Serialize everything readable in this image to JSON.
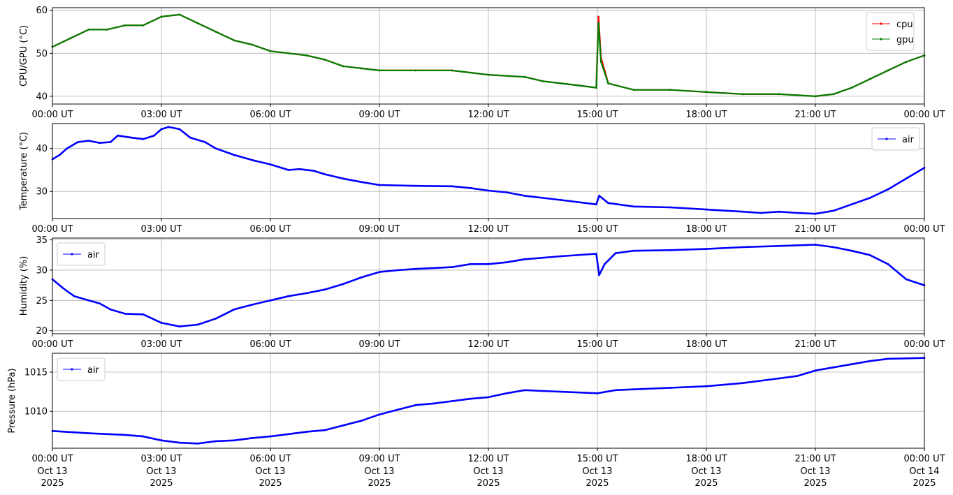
{
  "x_ticks": [
    "00:00 UT",
    "03:00 UT",
    "06:00 UT",
    "09:00 UT",
    "12:00 UT",
    "15:00 UT",
    "18:00 UT",
    "21:00 UT",
    "00:00 UT"
  ],
  "x_tick_dates": [
    [
      "Oct 13",
      "2025"
    ],
    [
      "Oct 13",
      "2025"
    ],
    [
      "Oct 13",
      "2025"
    ],
    [
      "Oct 13",
      "2025"
    ],
    [
      "Oct 13",
      "2025"
    ],
    [
      "Oct 13",
      "2025"
    ],
    [
      "Oct 13",
      "2025"
    ],
    [
      "Oct 13",
      "2025"
    ],
    [
      "Oct 14",
      "2025"
    ]
  ],
  "colors": {
    "cpu": "#ff0000",
    "gpu": "#008000",
    "air": "#0000ff",
    "grid": "#b0b0b0"
  },
  "chart_data": [
    {
      "type": "line",
      "ylabel": "CPU/GPU (°C)",
      "x_unit": "hours (UT)",
      "xlim": [
        0,
        24
      ],
      "ylim": [
        38.2,
        60.6
      ],
      "yticks": [
        40,
        50,
        60
      ],
      "grid": true,
      "legend": "top-right",
      "series": [
        {
          "name": "cpu",
          "color": "#ff0000",
          "points": [
            [
              0,
              51.5
            ],
            [
              0.5,
              53.5
            ],
            [
              1,
              55.5
            ],
            [
              1.5,
              55.5
            ],
            [
              2,
              56.5
            ],
            [
              2.5,
              56.5
            ],
            [
              3,
              58.5
            ],
            [
              3.5,
              59
            ],
            [
              4,
              57
            ],
            [
              4.5,
              55
            ],
            [
              5,
              53
            ],
            [
              5.5,
              52
            ],
            [
              6,
              50.5
            ],
            [
              6.5,
              50
            ],
            [
              7,
              49.5
            ],
            [
              7.5,
              48.5
            ],
            [
              8,
              47
            ],
            [
              8.5,
              46.5
            ],
            [
              9,
              46
            ],
            [
              10,
              46
            ],
            [
              11,
              46
            ],
            [
              12,
              45
            ],
            [
              13,
              44.5
            ],
            [
              13.5,
              43.5
            ],
            [
              14,
              43
            ],
            [
              14.5,
              42.5
            ],
            [
              14.97,
              42
            ],
            [
              15.03,
              58.5
            ],
            [
              15.1,
              49
            ],
            [
              15.3,
              43
            ],
            [
              16,
              41.5
            ],
            [
              17,
              41.5
            ],
            [
              18,
              41
            ],
            [
              19,
              40.5
            ],
            [
              20,
              40.5
            ],
            [
              21,
              40
            ],
            [
              21.5,
              40.5
            ],
            [
              22,
              42
            ],
            [
              22.5,
              44
            ],
            [
              23,
              46
            ],
            [
              23.5,
              48
            ],
            [
              24,
              49.5
            ]
          ]
        },
        {
          "name": "gpu",
          "color": "#008000",
          "points": [
            [
              0,
              51.5
            ],
            [
              0.5,
              53.5
            ],
            [
              1,
              55.5
            ],
            [
              1.5,
              55.5
            ],
            [
              2,
              56.5
            ],
            [
              2.5,
              56.5
            ],
            [
              3,
              58.5
            ],
            [
              3.5,
              59
            ],
            [
              4,
              57
            ],
            [
              4.5,
              55
            ],
            [
              5,
              53
            ],
            [
              5.5,
              52
            ],
            [
              6,
              50.5
            ],
            [
              6.5,
              50
            ],
            [
              7,
              49.5
            ],
            [
              7.5,
              48.5
            ],
            [
              8,
              47
            ],
            [
              8.5,
              46.5
            ],
            [
              9,
              46
            ],
            [
              10,
              46
            ],
            [
              11,
              46
            ],
            [
              12,
              45
            ],
            [
              13,
              44.5
            ],
            [
              13.5,
              43.5
            ],
            [
              14,
              43
            ],
            [
              14.5,
              42.5
            ],
            [
              14.97,
              42
            ],
            [
              15.03,
              57
            ],
            [
              15.1,
              48
            ],
            [
              15.3,
              43
            ],
            [
              16,
              41.5
            ],
            [
              17,
              41.5
            ],
            [
              18,
              41
            ],
            [
              19,
              40.5
            ],
            [
              20,
              40.5
            ],
            [
              21,
              40
            ],
            [
              21.5,
              40.5
            ],
            [
              22,
              42
            ],
            [
              22.5,
              44
            ],
            [
              23,
              46
            ],
            [
              23.5,
              48
            ],
            [
              24,
              49.5
            ]
          ]
        }
      ]
    },
    {
      "type": "line",
      "ylabel": "Temperature (°C)",
      "x_unit": "hours (UT)",
      "xlim": [
        0,
        24
      ],
      "ylim": [
        23.7,
        45.8
      ],
      "yticks": [
        30,
        40
      ],
      "grid": true,
      "legend": "top-right",
      "series": [
        {
          "name": "air",
          "color": "#0000ff",
          "points": [
            [
              0,
              37.5
            ],
            [
              0.2,
              38.5
            ],
            [
              0.4,
              40
            ],
            [
              0.7,
              41.5
            ],
            [
              1,
              41.8
            ],
            [
              1.3,
              41.3
            ],
            [
              1.6,
              41.5
            ],
            [
              1.8,
              43
            ],
            [
              2.2,
              42.5
            ],
            [
              2.5,
              42.2
            ],
            [
              2.8,
              43
            ],
            [
              3,
              44.5
            ],
            [
              3.2,
              45
            ],
            [
              3.5,
              44.5
            ],
            [
              3.8,
              42.5
            ],
            [
              4.2,
              41.5
            ],
            [
              4.5,
              40
            ],
            [
              5,
              38.5
            ],
            [
              5.5,
              37.3
            ],
            [
              6,
              36.3
            ],
            [
              6.5,
              35
            ],
            [
              6.8,
              35.2
            ],
            [
              7.2,
              34.8
            ],
            [
              7.5,
              34
            ],
            [
              8,
              33
            ],
            [
              8.5,
              32.2
            ],
            [
              9,
              31.5
            ],
            [
              10,
              31.3
            ],
            [
              11,
              31.2
            ],
            [
              11.5,
              30.8
            ],
            [
              12,
              30.2
            ],
            [
              12.5,
              29.8
            ],
            [
              13,
              29
            ],
            [
              14,
              28
            ],
            [
              14.97,
              27
            ],
            [
              15.05,
              29
            ],
            [
              15.3,
              27.3
            ],
            [
              16,
              26.5
            ],
            [
              17,
              26.3
            ],
            [
              18,
              25.8
            ],
            [
              19,
              25.3
            ],
            [
              19.5,
              25
            ],
            [
              20,
              25.3
            ],
            [
              20.5,
              25
            ],
            [
              21,
              24.8
            ],
            [
              21.5,
              25.5
            ],
            [
              22,
              27
            ],
            [
              22.5,
              28.5
            ],
            [
              23,
              30.5
            ],
            [
              23.5,
              33
            ],
            [
              24,
              35.5
            ]
          ]
        }
      ]
    },
    {
      "type": "line",
      "ylabel": "Humidity (%)",
      "x_unit": "hours (UT)",
      "xlim": [
        0,
        24
      ],
      "ylim": [
        19.5,
        35.3
      ],
      "yticks": [
        20,
        25,
        30,
        35
      ],
      "grid": true,
      "legend": "top-left",
      "series": [
        {
          "name": "air",
          "color": "#0000ff",
          "points": [
            [
              0,
              28.5
            ],
            [
              0.3,
              27
            ],
            [
              0.6,
              25.7
            ],
            [
              1,
              25
            ],
            [
              1.3,
              24.5
            ],
            [
              1.6,
              23.5
            ],
            [
              2,
              22.8
            ],
            [
              2.5,
              22.7
            ],
            [
              3,
              21.3
            ],
            [
              3.5,
              20.7
            ],
            [
              4,
              21
            ],
            [
              4.5,
              22
            ],
            [
              5,
              23.5
            ],
            [
              5.5,
              24.3
            ],
            [
              6,
              25
            ],
            [
              6.5,
              25.7
            ],
            [
              7,
              26.2
            ],
            [
              7.5,
              26.8
            ],
            [
              8,
              27.7
            ],
            [
              8.5,
              28.8
            ],
            [
              9,
              29.7
            ],
            [
              9.5,
              30
            ],
            [
              10,
              30.2
            ],
            [
              11,
              30.5
            ],
            [
              11.5,
              31
            ],
            [
              12,
              31
            ],
            [
              12.5,
              31.3
            ],
            [
              13,
              31.8
            ],
            [
              14,
              32.3
            ],
            [
              14.97,
              32.7
            ],
            [
              15.05,
              29.2
            ],
            [
              15.2,
              31
            ],
            [
              15.5,
              32.8
            ],
            [
              16,
              33.2
            ],
            [
              17,
              33.3
            ],
            [
              18,
              33.5
            ],
            [
              19,
              33.8
            ],
            [
              20,
              34
            ],
            [
              21,
              34.2
            ],
            [
              21.5,
              33.8
            ],
            [
              22,
              33.2
            ],
            [
              22.5,
              32.5
            ],
            [
              23,
              31
            ],
            [
              23.5,
              28.5
            ],
            [
              24,
              27.5
            ]
          ]
        }
      ]
    },
    {
      "type": "line",
      "ylabel": "Pressure (hPa)",
      "x_unit": "hours (UT)",
      "xlim": [
        0,
        24
      ],
      "ylim": [
        1005.3,
        1017.4
      ],
      "yticks": [
        1010,
        1015
      ],
      "grid": true,
      "legend": "top-left",
      "series": [
        {
          "name": "air",
          "color": "#0000ff",
          "points": [
            [
              0,
              1007.5
            ],
            [
              1,
              1007.2
            ],
            [
              2,
              1007
            ],
            [
              2.5,
              1006.8
            ],
            [
              3,
              1006.3
            ],
            [
              3.5,
              1006
            ],
            [
              4,
              1005.9
            ],
            [
              4.5,
              1006.2
            ],
            [
              5,
              1006.3
            ],
            [
              5.5,
              1006.6
            ],
            [
              6,
              1006.8
            ],
            [
              6.5,
              1007.1
            ],
            [
              7,
              1007.4
            ],
            [
              7.5,
              1007.6
            ],
            [
              8,
              1008.2
            ],
            [
              8.5,
              1008.8
            ],
            [
              9,
              1009.6
            ],
            [
              9.5,
              1010.2
            ],
            [
              10,
              1010.8
            ],
            [
              10.5,
              1011
            ],
            [
              11,
              1011.3
            ],
            [
              11.5,
              1011.6
            ],
            [
              12,
              1011.8
            ],
            [
              12.5,
              1012.3
            ],
            [
              13,
              1012.7
            ],
            [
              13.5,
              1012.6
            ],
            [
              14,
              1012.5
            ],
            [
              15,
              1012.3
            ],
            [
              15.5,
              1012.7
            ],
            [
              16,
              1012.8
            ],
            [
              17,
              1013
            ],
            [
              18,
              1013.2
            ],
            [
              19,
              1013.6
            ],
            [
              20,
              1014.2
            ],
            [
              20.5,
              1014.5
            ],
            [
              21,
              1015.2
            ],
            [
              21.5,
              1015.6
            ],
            [
              22,
              1016
            ],
            [
              22.5,
              1016.4
            ],
            [
              23,
              1016.7
            ],
            [
              24,
              1016.8
            ]
          ]
        }
      ]
    }
  ]
}
